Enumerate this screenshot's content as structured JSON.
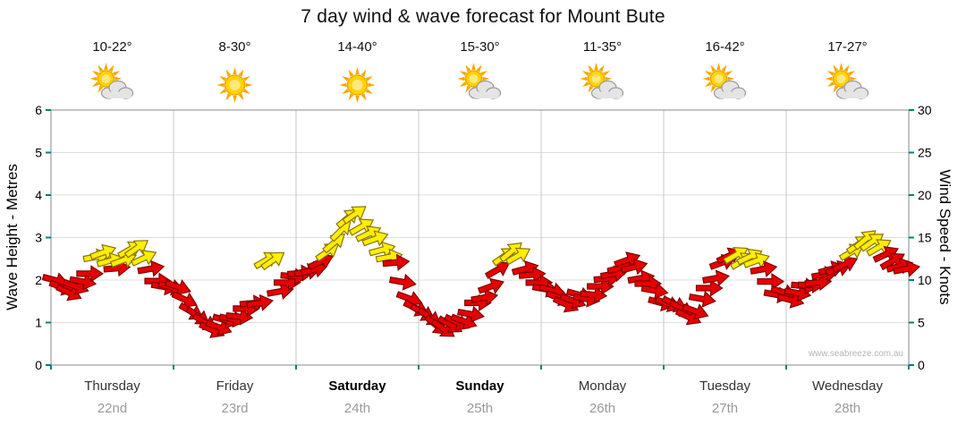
{
  "title": "7 day wind & wave forecast for Mount Bute",
  "watermark": "www.seabreeze.com.au",
  "days": [
    {
      "name": "Thursday",
      "date": "22nd",
      "temp": "10-22°",
      "icon": "sun-cloud",
      "emphasis": false
    },
    {
      "name": "Friday",
      "date": "23rd",
      "temp": "8-30°",
      "icon": "sun",
      "emphasis": false
    },
    {
      "name": "Saturday",
      "date": "24th",
      "temp": "14-40°",
      "icon": "sun",
      "emphasis": true
    },
    {
      "name": "Sunday",
      "date": "25th",
      "temp": "15-30°",
      "icon": "sun-cloud",
      "emphasis": true
    },
    {
      "name": "Monday",
      "date": "26th",
      "temp": "11-35°",
      "icon": "sun-cloud",
      "emphasis": false
    },
    {
      "name": "Tuesday",
      "date": "27th",
      "temp": "16-42°",
      "icon": "sun-cloud",
      "emphasis": false
    },
    {
      "name": "Wednesday",
      "date": "28th",
      "temp": "17-27°",
      "icon": "sun-cloud",
      "emphasis": false
    }
  ],
  "chart_data": {
    "type": "scatter",
    "subtype": "wind-direction-arrow-timeseries",
    "title": "7 day wind & wave forecast for Mount Bute",
    "x": {
      "categories": [
        "Thursday 22nd",
        "Friday 23rd",
        "Saturday 24th",
        "Sunday 25th",
        "Monday 26th",
        "Tuesday 27th",
        "Wednesday 28th"
      ],
      "span_days": 7,
      "grid": true
    },
    "y_left": {
      "label": "Wave Height - Metres",
      "min": 0,
      "max": 6,
      "ticks": [
        0,
        1,
        2,
        3,
        4,
        5,
        6
      ]
    },
    "y_right": {
      "label": "Wind Speed - Knots",
      "min": 0,
      "max": 30,
      "ticks": [
        0,
        5,
        10,
        15,
        20,
        25,
        30
      ]
    },
    "legend": "none",
    "colors": {
      "arrow_red": "#e60000",
      "arrow_red_outline": "#7f0000",
      "arrow_yellow": "#ffee00",
      "arrow_yellow_outline": "#8a7400",
      "tick": "#008080",
      "grid": "#dcdcdc",
      "grid_day": "#c9c9c9",
      "border": "#888888"
    },
    "per_day": [
      {
        "day": "Thursday",
        "knots": [
          10,
          9.5,
          8.5,
          9,
          10,
          11,
          12.5,
          13,
          12.5,
          11.5,
          12,
          13.5,
          14,
          12.5,
          11,
          10,
          9.5,
          9
        ],
        "dir_deg": [
          15,
          20,
          25,
          20,
          10,
          0,
          -10,
          -20,
          -15,
          -5,
          -20,
          -30,
          -35,
          -25,
          -10,
          0,
          10,
          15
        ],
        "yellow": [
          0,
          0,
          0,
          0,
          0,
          0,
          1,
          1,
          1,
          0,
          1,
          1,
          1,
          1,
          0,
          0,
          0,
          0
        ]
      },
      {
        "day": "Friday",
        "knots": [
          9,
          8,
          6.5,
          5.5,
          5,
          4.5,
          4.5,
          5,
          5.5,
          6,
          6.5,
          7,
          7.5,
          12.5,
          12,
          8.5,
          10,
          10.5
        ],
        "dir_deg": [
          20,
          25,
          30,
          35,
          30,
          25,
          20,
          15,
          10,
          5,
          0,
          -5,
          -10,
          -30,
          -35,
          -10,
          0,
          5
        ],
        "yellow": [
          0,
          0,
          0,
          0,
          0,
          0,
          0,
          0,
          0,
          0,
          0,
          0,
          0,
          1,
          1,
          0,
          0,
          0
        ]
      },
      {
        "day": "Saturday",
        "knots": [
          10.5,
          11,
          11.5,
          12,
          13,
          14.5,
          16,
          17,
          17.5,
          16.5,
          15.5,
          14.5,
          13.5,
          13,
          12,
          9.5,
          8,
          7
        ],
        "dir_deg": [
          -5,
          -10,
          -15,
          -25,
          -35,
          -40,
          -45,
          -40,
          -35,
          -30,
          -25,
          -20,
          -15,
          -10,
          -5,
          10,
          20,
          25
        ],
        "yellow": [
          0,
          0,
          0,
          0,
          1,
          1,
          1,
          1,
          1,
          1,
          1,
          1,
          1,
          1,
          0,
          0,
          0,
          0
        ]
      },
      {
        "day": "Sunday",
        "knots": [
          6,
          5.5,
          5,
          4.5,
          4.5,
          5,
          5.5,
          6,
          7,
          8,
          9.5,
          11,
          12.5,
          13.5,
          13,
          11,
          10.5,
          10
        ],
        "dir_deg": [
          30,
          35,
          40,
          35,
          30,
          25,
          20,
          10,
          0,
          -10,
          -20,
          -30,
          -35,
          -40,
          -30,
          -15,
          -5,
          0
        ],
        "yellow": [
          0,
          0,
          0,
          0,
          0,
          0,
          0,
          0,
          0,
          0,
          0,
          0,
          1,
          1,
          1,
          0,
          0,
          0
        ]
      },
      {
        "day": "Monday",
        "knots": [
          9,
          8.5,
          8,
          7.5,
          7.5,
          8,
          8,
          8.5,
          9,
          10,
          11,
          11.5,
          12,
          11.5,
          10.5,
          9.5,
          8.5,
          7.5
        ],
        "dir_deg": [
          10,
          15,
          20,
          25,
          20,
          15,
          10,
          5,
          0,
          -5,
          -10,
          -15,
          -20,
          -15,
          -10,
          0,
          10,
          15
        ],
        "yellow": [
          0,
          0,
          0,
          0,
          0,
          0,
          0,
          0,
          0,
          0,
          0,
          0,
          0,
          0,
          0,
          0,
          0,
          0
        ]
      },
      {
        "day": "Tuesday",
        "knots": [
          7.5,
          7,
          6.5,
          6,
          6.5,
          7.5,
          9,
          10.5,
          12,
          12.5,
          13,
          12.5,
          12.5,
          12,
          11.5,
          10,
          8,
          8.5
        ],
        "dir_deg": [
          20,
          25,
          30,
          25,
          20,
          10,
          0,
          -10,
          -20,
          -25,
          -30,
          -30,
          -25,
          -20,
          -10,
          0,
          10,
          15
        ],
        "yellow": [
          0,
          0,
          0,
          0,
          0,
          0,
          0,
          0,
          0,
          0,
          1,
          1,
          1,
          1,
          0,
          0,
          0,
          0
        ]
      },
      {
        "day": "Wednesday",
        "knots": [
          8,
          8.5,
          9,
          9.5,
          10,
          10.5,
          11,
          11.5,
          12,
          13,
          14,
          15,
          14.5,
          13.5,
          13,
          12.5,
          11.5,
          11
        ],
        "dir_deg": [
          15,
          10,
          5,
          0,
          -5,
          -10,
          -15,
          -20,
          -25,
          -30,
          -35,
          -40,
          -35,
          -30,
          -25,
          -30,
          -15,
          -10
        ],
        "yellow": [
          0,
          0,
          0,
          0,
          0,
          0,
          0,
          0,
          0,
          1,
          1,
          1,
          1,
          1,
          0,
          0,
          0,
          0
        ]
      }
    ]
  }
}
